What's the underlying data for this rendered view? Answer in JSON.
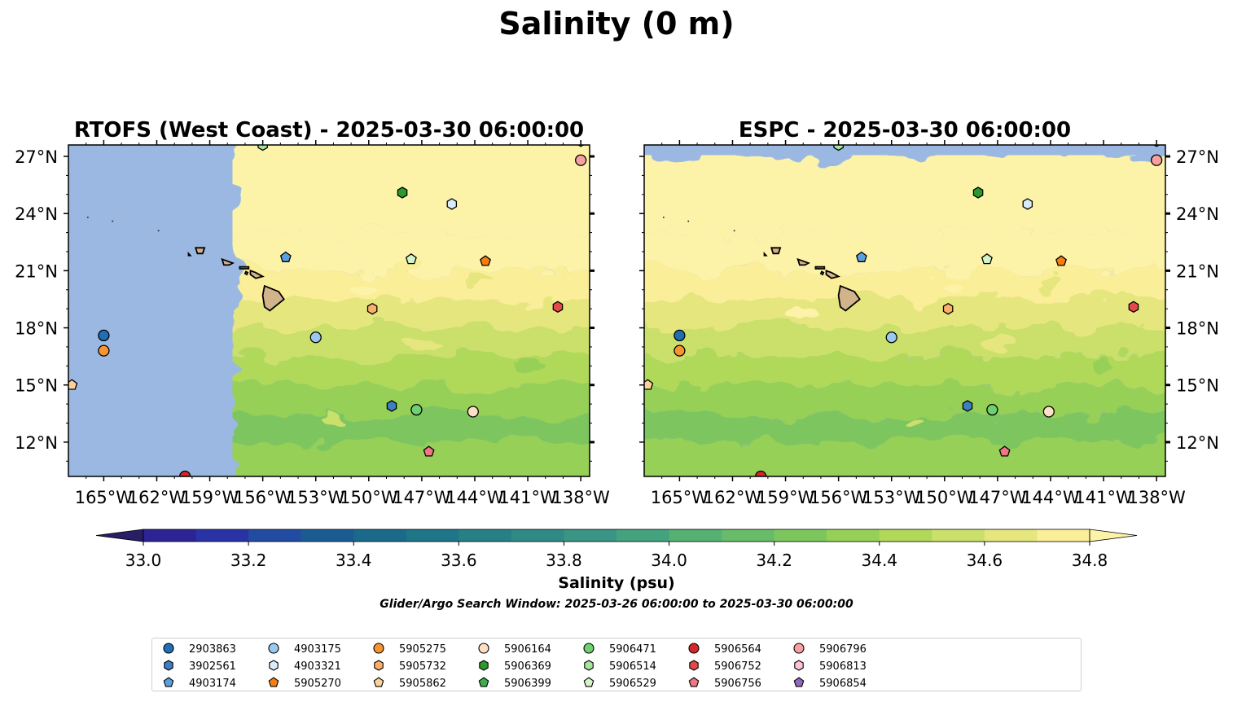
{
  "title": "Salinity (0 m)",
  "colorbar": {
    "label": "Salinity (psu)",
    "min": 32.9,
    "max": 34.9,
    "step": 0.1,
    "ticks": [
      "33.0",
      "33.2",
      "33.4",
      "33.6",
      "33.8",
      "34.0",
      "34.2",
      "34.4",
      "34.6",
      "34.8"
    ],
    "extend": "both",
    "colors": [
      "#271e67",
      "#2c2394",
      "#2a33a6",
      "#224ba2",
      "#1a5c92",
      "#1a6a8c",
      "#1f7688",
      "#278086",
      "#2f8a85",
      "#3a9584",
      "#44a27f",
      "#55b073",
      "#67bb69",
      "#7dc65e",
      "#96d057",
      "#b0d95a",
      "#cbe06a",
      "#e6e67f",
      "#fbee98",
      "#fdf3a8"
    ]
  },
  "search_window": "Glider/Argo Search Window: 2025-03-26 06:00:00 to 2025-03-30 06:00:00",
  "land_color": "#d2b48c",
  "nodata_color": "#9ab8e2",
  "chart_data": [
    {
      "type": "map",
      "title": "RTOFS (West Coast) - 2025-03-30 06:00:00",
      "xlim": [
        -167,
        -137.5
      ],
      "ylim": [
        10.2,
        27.6
      ],
      "x_ticks": [
        "165°W",
        "162°W",
        "159°W",
        "156°W",
        "153°W",
        "150°W",
        "147°W",
        "144°W",
        "141°W",
        "138°W"
      ],
      "y_ticks": [
        "12°N",
        "15°N",
        "18°N",
        "21°N",
        "24°N",
        "27°N"
      ],
      "y_axis_side": "left",
      "data_coverage_lon": [
        -157.7,
        -137.5
      ]
    },
    {
      "type": "map",
      "title": "ESPC - 2025-03-30 06:00:00",
      "xlim": [
        -167,
        -137.5
      ],
      "ylim": [
        10.2,
        27.6
      ],
      "x_ticks": [
        "165°W",
        "162°W",
        "159°W",
        "156°W",
        "153°W",
        "150°W",
        "147°W",
        "144°W",
        "141°W",
        "138°W"
      ],
      "y_ticks": [
        "12°N",
        "15°N",
        "18°N",
        "21°N",
        "24°N",
        "27°N"
      ],
      "y_axis_side": "right",
      "data_coverage_lat_max": 27.05
    }
  ],
  "floats": [
    {
      "id": "2903863",
      "lon": -165.0,
      "lat": 17.6,
      "marker": "circle",
      "color": "#1f6fb4"
    },
    {
      "id": "3902561",
      "lon": -148.7,
      "lat": 13.9,
      "marker": "hexagon",
      "color": "#3d7fc1"
    },
    {
      "id": "4903174",
      "lon": -154.7,
      "lat": 21.7,
      "marker": "pentagon",
      "color": "#5aa0e0"
    },
    {
      "id": "4903175",
      "lon": -153.0,
      "lat": 17.5,
      "marker": "circle",
      "color": "#99c9ef"
    },
    {
      "id": "4903321",
      "lon": -145.3,
      "lat": 24.5,
      "marker": "hexagon",
      "color": "#d8ecfb"
    },
    {
      "id": "5905270",
      "lon": -143.4,
      "lat": 21.5,
      "marker": "pentagon",
      "color": "#f77f0e"
    },
    {
      "id": "5905275",
      "lon": -165.0,
      "lat": 16.8,
      "marker": "circle",
      "color": "#f79432"
    },
    {
      "id": "5905732",
      "lon": -149.8,
      "lat": 19.0,
      "marker": "hexagon",
      "color": "#fbb06a"
    },
    {
      "id": "5905862",
      "lon": -166.8,
      "lat": 15.0,
      "marker": "pentagon",
      "color": "#fdd19a"
    },
    {
      "id": "5906164",
      "lon": -144.1,
      "lat": 13.6,
      "marker": "circle",
      "color": "#fde0c3"
    },
    {
      "id": "5906369",
      "lon": -148.1,
      "lat": 25.1,
      "marker": "hexagon",
      "color": "#2a9a2a"
    },
    {
      "id": "5906399",
      "lon": -156.1,
      "lat": 27.8,
      "marker": "pentagon",
      "color": "#3bb04a"
    },
    {
      "id": "5906471",
      "lon": -147.3,
      "lat": 13.7,
      "marker": "circle",
      "color": "#6fd06f"
    },
    {
      "id": "5906514",
      "lon": -156.0,
      "lat": 27.6,
      "marker": "hexagon",
      "color": "#a8e6a0"
    },
    {
      "id": "5906529",
      "lon": -147.6,
      "lat": 21.6,
      "marker": "pentagon",
      "color": "#d4f5c9"
    },
    {
      "id": "5906564",
      "lon": -160.4,
      "lat": 10.2,
      "marker": "circle",
      "color": "#d62728"
    },
    {
      "id": "5906752",
      "lon": -139.3,
      "lat": 19.1,
      "marker": "hexagon",
      "color": "#e24a4a"
    },
    {
      "id": "5906756",
      "lon": -146.6,
      "lat": 11.5,
      "marker": "pentagon",
      "color": "#f07585"
    },
    {
      "id": "5906796",
      "lon": -138.0,
      "lat": 26.8,
      "marker": "circle",
      "color": "#f7a0a0"
    },
    {
      "id": "5906813",
      "lon": -138.0,
      "lat": 27.8,
      "marker": "hexagon",
      "color": "#fbc6d2"
    },
    {
      "id": "5906854",
      "lon": -138.0,
      "lat": 27.9,
      "marker": "pentagon",
      "color": "#9268bf"
    }
  ]
}
